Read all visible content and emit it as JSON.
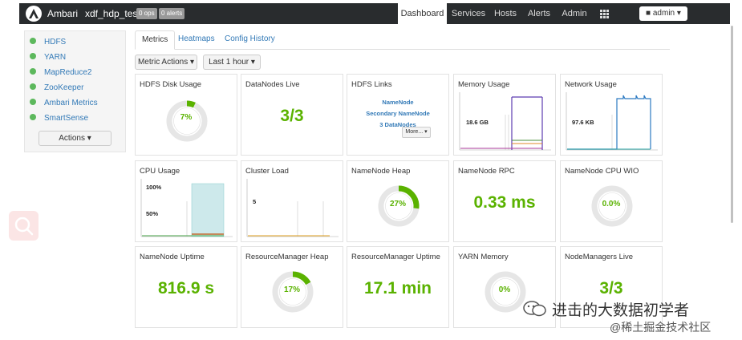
{
  "topbar": {
    "brand": "Ambari",
    "cluster": "xdf_hdp_test",
    "ops_badge": "0 ops",
    "alerts_badge": "0 alerts",
    "nav": [
      "Dashboard",
      "Services",
      "Hosts",
      "Alerts",
      "Admin"
    ],
    "user_button": "admin"
  },
  "sidebar": {
    "services": [
      "HDFS",
      "YARN",
      "MapReduce2",
      "ZooKeeper",
      "Ambari Metrics",
      "SmartSense"
    ],
    "actions_label": "Actions"
  },
  "tabs": [
    "Metrics",
    "Heatmaps",
    "Config History"
  ],
  "toolbar": {
    "metric_actions": "Metric Actions",
    "time_range": "Last 1 hour"
  },
  "widgets": {
    "hdfs_disk": {
      "title": "HDFS Disk Usage",
      "value": "7%",
      "fraction": 0.07
    },
    "datanodes": {
      "title": "DataNodes Live",
      "value": "3/3"
    },
    "hdfs_links": {
      "title": "HDFS Links",
      "links": [
        "NameNode",
        "Secondary NameNode",
        "3 DataNodes"
      ],
      "more": "More..."
    },
    "memory": {
      "title": "Memory Usage",
      "label": "18.6 GB"
    },
    "network": {
      "title": "Network Usage",
      "label": "97.6 KB"
    },
    "cpu": {
      "title": "CPU Usage",
      "label_top": "100%",
      "label_mid": "50%"
    },
    "cluster_load": {
      "title": "Cluster Load",
      "label": "5"
    },
    "nn_heap": {
      "title": "NameNode Heap",
      "value": "27%",
      "fraction": 0.27
    },
    "nn_rpc": {
      "title": "NameNode RPC",
      "value": "0.33 ms"
    },
    "nn_cpu": {
      "title": "NameNode CPU WIO",
      "value": "0.0%",
      "fraction": 0.0
    },
    "nn_uptime": {
      "title": "NameNode Uptime",
      "value": "816.9 s"
    },
    "rm_heap": {
      "title": "ResourceManager Heap",
      "value": "17%",
      "fraction": 0.17
    },
    "rm_uptime": {
      "title": "ResourceManager Uptime",
      "value": "17.1 min"
    },
    "yarn_mem": {
      "title": "YARN Memory",
      "value": "0%",
      "fraction": 0.0
    },
    "nm_live": {
      "title": "NodeManagers Live",
      "value": "3/3"
    }
  },
  "watermark": {
    "line1": "进击的大数据初学者",
    "line2": "@稀土掘金技术社区"
  },
  "colors": {
    "accent_green": "#5ab200",
    "link_blue": "#337ab7",
    "topbar": "#292c2e"
  }
}
